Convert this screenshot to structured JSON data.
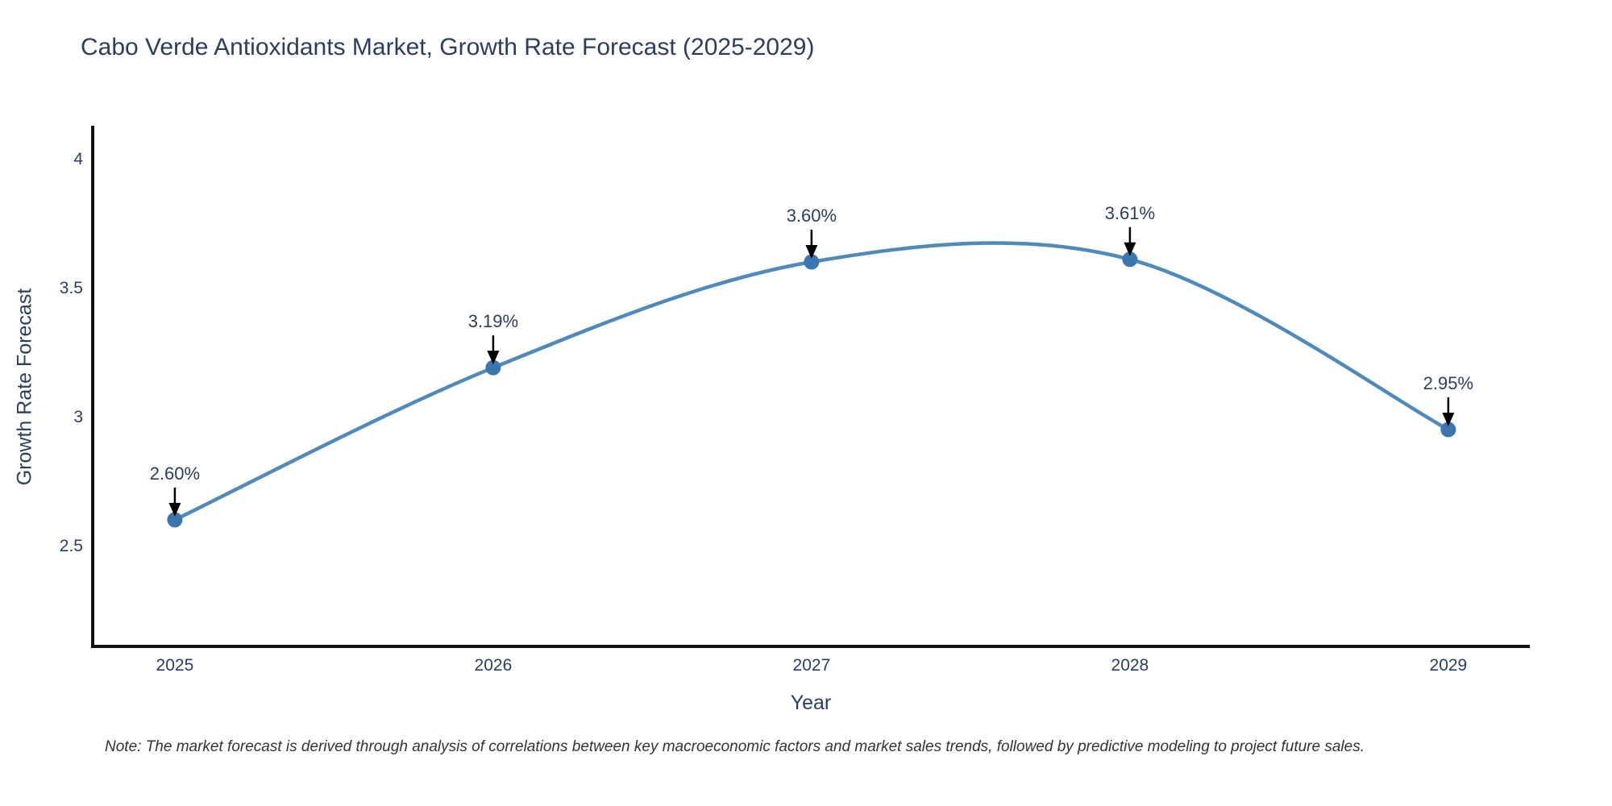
{
  "chart_data": {
    "type": "line",
    "title": "Cabo Verde Antioxidants Market, Growth Rate Forecast (2025-2029)",
    "xlabel": "Year",
    "ylabel": "Growth Rate Forecast",
    "x": [
      2025,
      2026,
      2027,
      2028,
      2029
    ],
    "series": [
      {
        "name": "Growth Rate Forecast",
        "values": [
          2.6,
          3.19,
          3.6,
          3.61,
          2.95
        ]
      }
    ],
    "point_labels": [
      "2.60%",
      "3.19%",
      "3.60%",
      "3.61%",
      "2.95%"
    ],
    "xticks": {
      "values": [
        2025,
        2026,
        2027,
        2028,
        2029
      ],
      "labels": [
        "2025",
        "2026",
        "2027",
        "2028",
        "2029"
      ]
    },
    "yticks": {
      "values": [
        2.5,
        3,
        3.5,
        4
      ],
      "labels": [
        "2.5",
        "3",
        "3.5",
        "4"
      ]
    },
    "xlim": [
      2024.742,
      2029.256
    ],
    "ylim": [
      2.109,
      4.122
    ],
    "line_shape": "spline",
    "grid": false,
    "legend_position": "none",
    "markers": true,
    "annotations_have_arrows": true,
    "colors": {
      "line": "#4f8ab8",
      "marker": "#3b76af",
      "axis_line": "#111111",
      "text": "#2a3f5f",
      "annotation_text": "#2a3f5f",
      "annotation_arrow": "#000000",
      "note_text": "#333333",
      "background": "#ffffff"
    },
    "note": "Note: The market forecast is derived through analysis of correlations between key macroeconomic factors and market sales trends, followed by predictive modeling to project future sales."
  }
}
